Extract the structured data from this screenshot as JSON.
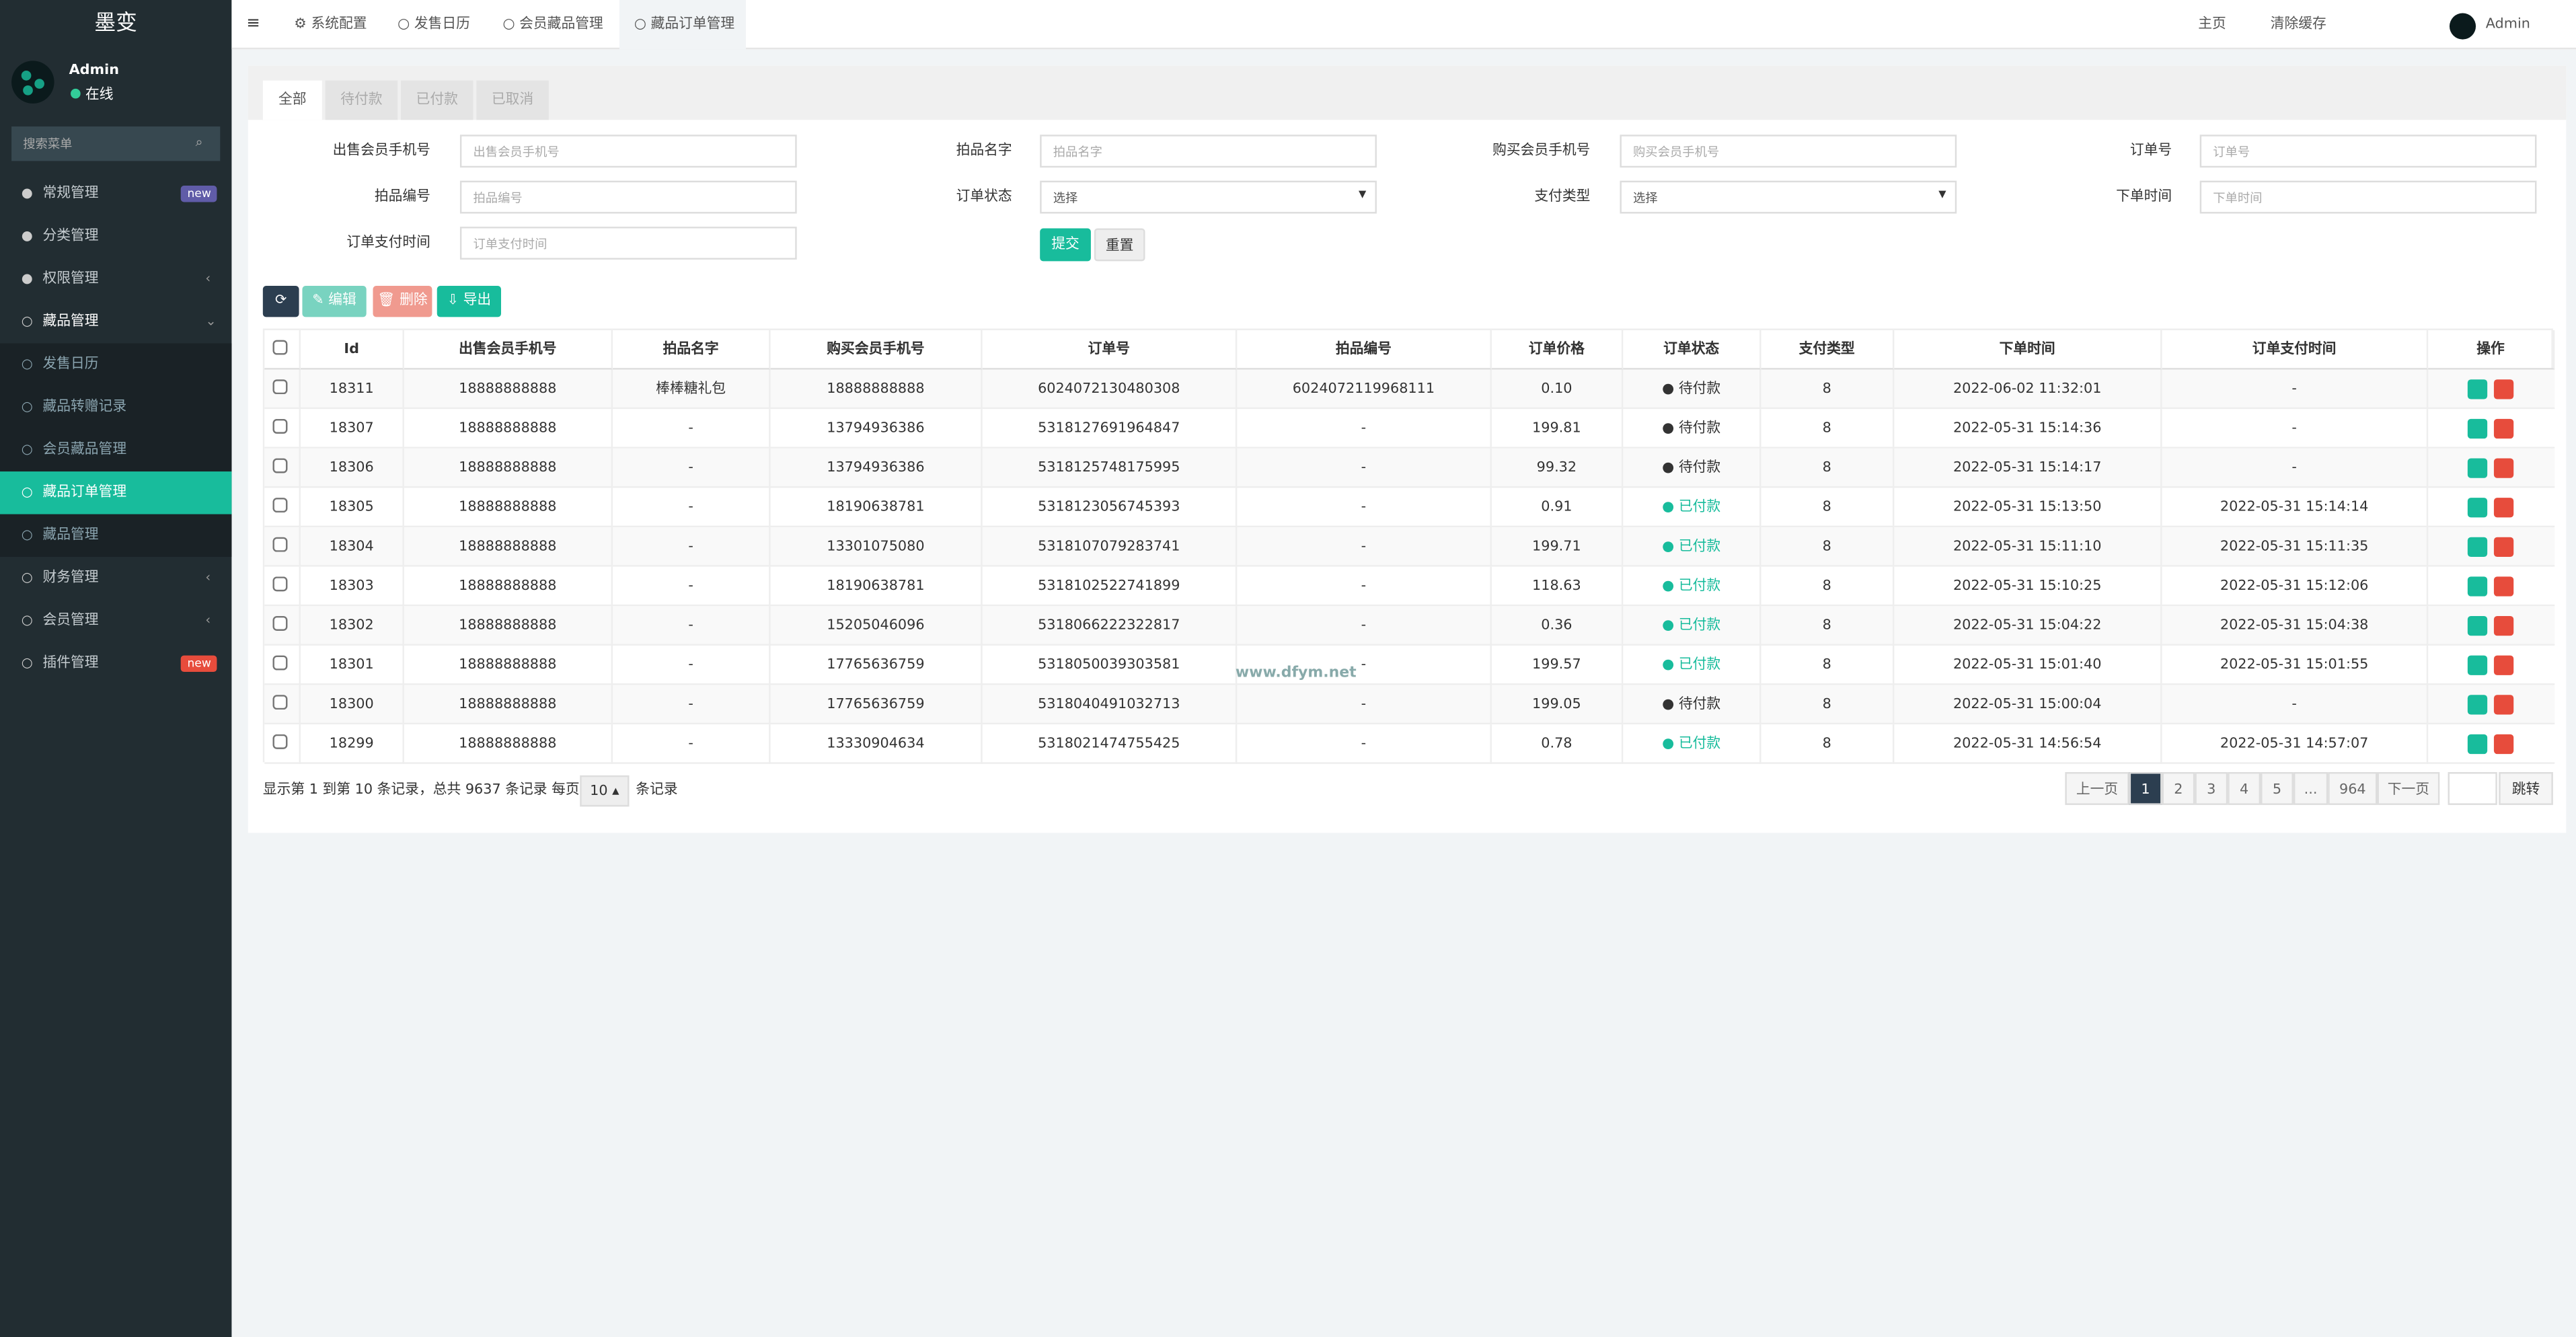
{
  "sidebar": {
    "logo": "墨变",
    "user": "Admin",
    "status": "在线",
    "search_placeholder": "搜索菜单",
    "menu": [
      {
        "label": "常规管理",
        "badge": "new"
      },
      {
        "label": "分类管理"
      },
      {
        "label": "权限管理"
      },
      {
        "label": "藏品管理",
        "children": [
          "发售日历",
          "藏品转赠记录",
          "会员藏品管理",
          "藏品订单管理",
          "藏品管理"
        ]
      },
      {
        "label": "财务管理"
      },
      {
        "label": "会员管理"
      },
      {
        "label": "插件管理",
        "badge": "new"
      }
    ]
  },
  "topbar": {
    "tabs": [
      "系统配置",
      "发售日历",
      "会员藏品管理",
      "藏品订单管理"
    ],
    "right": [
      "主页",
      "清除缓存",
      "Admin"
    ]
  },
  "status_tabs": [
    "全部",
    "待付款",
    "已付款",
    "已取消"
  ],
  "filters": [
    {
      "label": "出售会员手机号",
      "placeholder": "出售会员手机号"
    },
    {
      "label": "拍品名字",
      "placeholder": "拍品名字"
    },
    {
      "label": "购买会员手机号",
      "placeholder": "购买会员手机号"
    },
    {
      "label": "订单号",
      "placeholder": "订单号"
    },
    {
      "label": "拍品编号",
      "placeholder": "拍品编号"
    },
    {
      "label": "订单状态",
      "placeholder": "选择"
    },
    {
      "label": "支付类型",
      "placeholder": "选择"
    },
    {
      "label": "下单时间",
      "placeholder": "下单时间"
    },
    {
      "label": "订单支付时间",
      "placeholder": "订单支付时间"
    }
  ],
  "filter_buttons": [
    "提交",
    "重置"
  ],
  "toolbar": [
    "编辑",
    "删除",
    "导出"
  ],
  "table": {
    "headers": [
      "Id",
      "出售会员手机号",
      "拍品名字",
      "购买会员手机号",
      "订单号",
      "拍品编号",
      "订单价格",
      "订单状态",
      "支付类型",
      "下单时间",
      "订单支付时间",
      "操作"
    ],
    "rows": [
      [
        "18311",
        "18888888888",
        "棒棒糖礼包",
        "18888888888",
        "6024072130480308",
        "6024072119968111",
        "0.10",
        "待付款",
        "8",
        "2022-06-02 11:32:01",
        "-"
      ],
      [
        "18307",
        "18888888888",
        "-",
        "13794936386",
        "5318127691964847",
        "-",
        "199.81",
        "待付款",
        "8",
        "2022-05-31 15:14:36",
        "-"
      ],
      [
        "18306",
        "18888888888",
        "-",
        "13794936386",
        "5318125748175995",
        "-",
        "99.32",
        "待付款",
        "8",
        "2022-05-31 15:14:17",
        "-"
      ],
      [
        "18305",
        "18888888888",
        "-",
        "18190638781",
        "5318123056745393",
        "-",
        "0.91",
        "已付款",
        "8",
        "2022-05-31 15:13:50",
        "2022-05-31 15:14:14"
      ],
      [
        "18304",
        "18888888888",
        "-",
        "13301075080",
        "5318107079283741",
        "-",
        "199.71",
        "已付款",
        "8",
        "2022-05-31 15:11:10",
        "2022-05-31 15:11:35"
      ],
      [
        "18303",
        "18888888888",
        "-",
        "18190638781",
        "5318102522741899",
        "-",
        "118.63",
        "已付款",
        "8",
        "2022-05-31 15:10:25",
        "2022-05-31 15:12:06"
      ],
      [
        "18302",
        "18888888888",
        "-",
        "15205046096",
        "5318066222322817",
        "-",
        "0.36",
        "已付款",
        "8",
        "2022-05-31 15:04:22",
        "2022-05-31 15:04:38"
      ],
      [
        "18301",
        "18888888888",
        "-",
        "17765636759",
        "5318050039303581",
        "-",
        "199.57",
        "已付款",
        "8",
        "2022-05-31 15:01:40",
        "2022-05-31 15:01:55"
      ],
      [
        "18300",
        "18888888888",
        "-",
        "17765636759",
        "5318040491032713",
        "-",
        "199.05",
        "待付款",
        "8",
        "2022-05-31 15:00:04",
        "-"
      ],
      [
        "18299",
        "18888888888",
        "-",
        "13330904634",
        "5318021474755425",
        "-",
        "0.78",
        "已付款",
        "8",
        "2022-05-31 14:56:54",
        "2022-05-31 14:57:07"
      ]
    ]
  },
  "footer": {
    "summary": "显示第 1 到第 10 条记录，总共 9637 条记录 每页显示",
    "page_size": "10",
    "suffix": "条记录"
  },
  "pagination": [
    "上一页",
    "1",
    "2",
    "3",
    "4",
    "5",
    "...",
    "964",
    "下一页"
  ],
  "jump": "跳转",
  "watermark": "www.dfym.net"
}
